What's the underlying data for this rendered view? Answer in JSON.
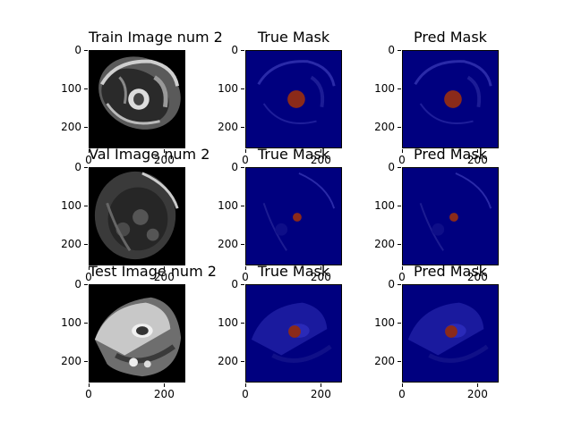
{
  "figure": {
    "rows": [
      {
        "panels": [
          {
            "title": "Train Image num 2",
            "kind": "image",
            "scan": "train"
          },
          {
            "title": "True Mask",
            "kind": "mask",
            "scan": "train",
            "lesion": "large"
          },
          {
            "title": "Pred Mask",
            "kind": "mask",
            "scan": "train",
            "lesion": "large"
          }
        ]
      },
      {
        "panels": [
          {
            "title": "Val Image num 2",
            "kind": "image",
            "scan": "val"
          },
          {
            "title": "True Mask",
            "kind": "mask",
            "scan": "val",
            "lesion": "small"
          },
          {
            "title": "Pred Mask",
            "kind": "mask",
            "scan": "val",
            "lesion": "small"
          }
        ]
      },
      {
        "panels": [
          {
            "title": "Test Image num 2",
            "kind": "image",
            "scan": "test"
          },
          {
            "title": "True Mask",
            "kind": "mask",
            "scan": "test",
            "lesion": "medium"
          },
          {
            "title": "Pred Mask",
            "kind": "mask",
            "scan": "test",
            "lesion": "medium"
          }
        ]
      }
    ],
    "yticks": [
      "0",
      "100",
      "200"
    ],
    "xticks": [
      "0",
      "200"
    ],
    "colors": {
      "image_bg": "#000000",
      "mask_bg": "#00007f",
      "lesion": "#8b2a1a"
    }
  }
}
